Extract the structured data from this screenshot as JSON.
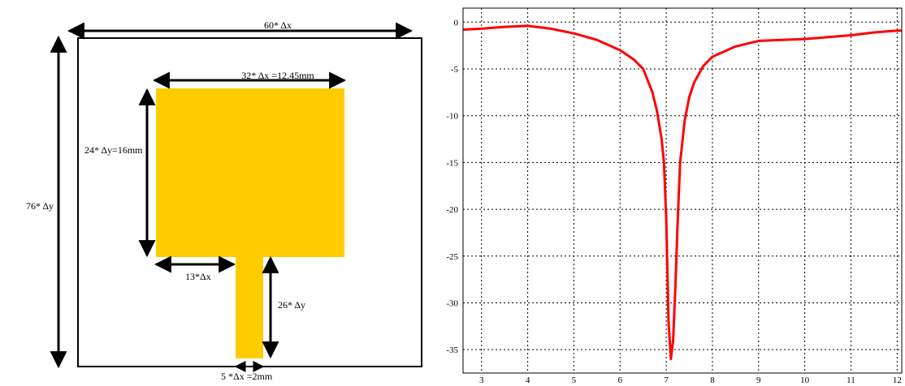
{
  "diagram": {
    "dimensions": {
      "width_total": "60* Δx",
      "height_total": "76* Δy",
      "patch_width": "32* Δx =12.45mm",
      "patch_height": "24* Δy=16mm",
      "feed_offset": "13*Δx",
      "feed_length": "26* Δy",
      "feed_width": "5 *Δx =2mm"
    },
    "colors": {
      "patch": "#FFCC00",
      "outline": "#000000"
    }
  },
  "chart_data": {
    "type": "line",
    "title": "",
    "xlabel": "",
    "ylabel": "",
    "xlim": [
      2.6,
      12.1
    ],
    "ylim": [
      -37.5,
      1.5
    ],
    "x_ticks": [
      3,
      4,
      5,
      6,
      7,
      8,
      9,
      10,
      11,
      12
    ],
    "y_ticks": [
      0,
      -5,
      -10,
      -15,
      -20,
      -25,
      -30,
      -35
    ],
    "grid": true,
    "series": [
      {
        "color": "#FF0000",
        "x": [
          2.6,
          3.0,
          3.5,
          4.0,
          4.5,
          5.0,
          5.5,
          6.0,
          6.3,
          6.5,
          6.7,
          6.8,
          6.9,
          6.95,
          7.0,
          7.05,
          7.1,
          7.15,
          7.2,
          7.25,
          7.3,
          7.4,
          7.5,
          7.6,
          7.8,
          8.0,
          8.5,
          9.0,
          9.5,
          10.0,
          10.5,
          11.0,
          11.5,
          12.0,
          12.1
        ],
        "y": [
          -0.8,
          -0.7,
          -0.5,
          -0.4,
          -0.7,
          -1.2,
          -1.9,
          -3.0,
          -4.0,
          -5.0,
          -7.5,
          -9.5,
          -12.5,
          -15.0,
          -21.0,
          -32.0,
          -36.0,
          -34.0,
          -28.0,
          -21.0,
          -15.0,
          -10.5,
          -8.0,
          -6.5,
          -4.7,
          -3.7,
          -2.6,
          -2.0,
          -1.9,
          -1.8,
          -1.6,
          -1.4,
          -1.1,
          -0.9,
          -0.9
        ]
      }
    ]
  }
}
